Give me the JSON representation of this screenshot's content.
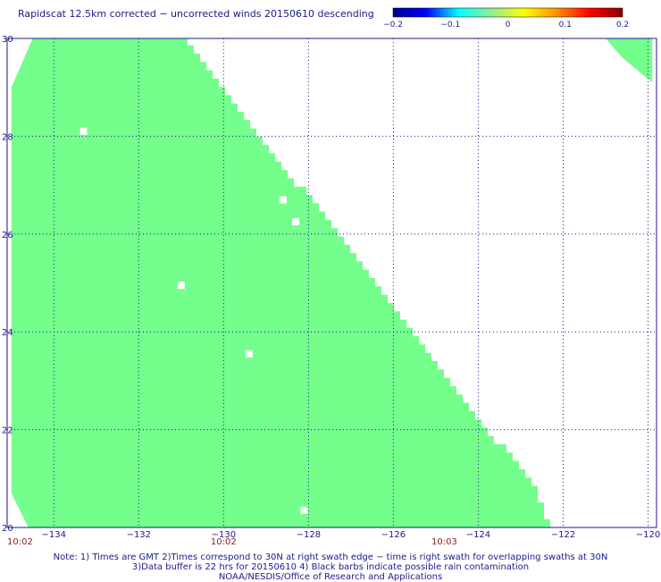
{
  "title": "Rapidscat 12.5km corrected − uncorrected winds 20150610 descending",
  "colors": {
    "swath_fill": "#74ff8c",
    "text": "#1a1a8c",
    "time_text": "#8b1a1a",
    "grid": "#1a1a8c"
  },
  "chart_data": {
    "type": "heatmap",
    "title": "Rapidscat 12.5km corrected − uncorrected winds 20150610 descending",
    "xlim": [
      -135.1,
      -119.8
    ],
    "ylim": [
      20,
      30
    ],
    "x_ticks": [
      -134,
      -132,
      -130,
      -128,
      -126,
      -124,
      -122,
      -120
    ],
    "x_tick_labels": [
      "−134",
      "−132",
      "−130",
      "−128",
      "−126",
      "−124",
      "−122",
      "−120"
    ],
    "y_ticks": [
      20,
      22,
      24,
      26,
      28,
      30
    ],
    "y_tick_labels": [
      "20",
      "22",
      "24",
      "26",
      "28",
      "30"
    ],
    "grid": true,
    "swath_value": 0,
    "swath_east_edge": [
      {
        "lat": 20.0,
        "lon": -122.3
      },
      {
        "lat": 21.0,
        "lon": -122.8
      },
      {
        "lat": 22.0,
        "lon": -123.9
      },
      {
        "lat": 23.0,
        "lon": -124.7
      },
      {
        "lat": 24.0,
        "lon": -125.6
      },
      {
        "lat": 25.0,
        "lon": -126.5
      },
      {
        "lat": 26.0,
        "lon": -127.4
      },
      {
        "lat": 27.0,
        "lon": -128.3
      },
      {
        "lat": 28.0,
        "lon": -129.2
      },
      {
        "lat": 29.0,
        "lon": -130.1
      },
      {
        "lat": 30.0,
        "lon": -130.9
      }
    ],
    "swath_west_edge": [
      {
        "lat": 20.0,
        "lon": -134.6
      },
      {
        "lat": 20.7,
        "lon": -135.0
      },
      {
        "lat": 29.0,
        "lon": -135.0
      },
      {
        "lat": 30.0,
        "lon": -134.5
      }
    ],
    "swath_ne_corner": [
      {
        "lat": 30.0,
        "lon": -121.0
      },
      {
        "lat": 29.6,
        "lon": -120.6
      },
      {
        "lat": 29.1,
        "lon": -119.9
      },
      {
        "lat": 30.0,
        "lon": -119.9
      }
    ],
    "data_gaps": [
      {
        "lat": 28.1,
        "lon": -133.3
      },
      {
        "lat": 26.7,
        "lon": -128.6
      },
      {
        "lat": 26.25,
        "lon": -128.3
      },
      {
        "lat": 24.95,
        "lon": -131.0
      },
      {
        "lat": 23.55,
        "lon": -129.4
      },
      {
        "lat": 20.35,
        "lon": -128.1
      }
    ],
    "time_labels": [
      {
        "lon": -135.1,
        "text": "10:02"
      },
      {
        "lon": -130.0,
        "text": "10:02"
      },
      {
        "lon": -124.8,
        "text": "10:03"
      }
    ],
    "colorbar": {
      "range": [
        -0.2,
        0.2
      ],
      "stops": [
        "#00008b",
        "#0000ff",
        "#00ffff",
        "#90ee90",
        "#ffff00",
        "#ff8c00",
        "#ff0000",
        "#8b0000"
      ],
      "ticks": [
        "−0.2",
        "−0.1",
        "0",
        "0.1",
        "0.2"
      ]
    }
  },
  "notes": [
    "Note: 1) Times are GMT 2)Times correspond to 30N at right swath edge − time is right swath for overlapping swaths at 30N",
    "3)Data buffer is 22 hrs for 20150610 4) Black barbs indicate possible rain contamination",
    "NOAA/NESDIS/Office of Research and Applications"
  ]
}
